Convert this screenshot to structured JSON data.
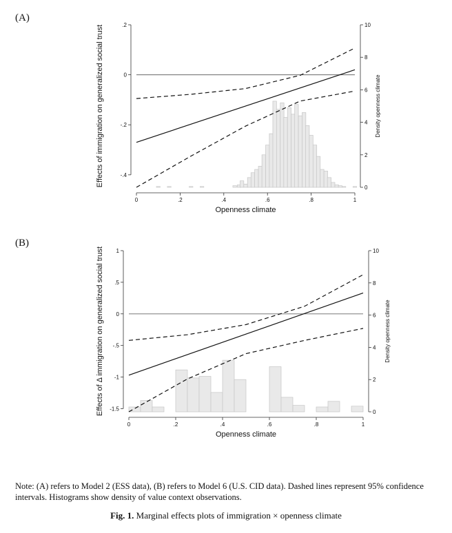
{
  "panels": {
    "a_label": "(A)",
    "b_label": "(B)"
  },
  "note": "Note: (A) refers to Model 2 (ESS data), (B) refers to Model 6 (U.S. CID data). Dashed lines represent 95% confidence intervals. Histograms show density of value context observations.",
  "caption": {
    "prefix": "Fig. 1.",
    "text": "Marginal effects plots of immigration × openness climate"
  },
  "chart_data": [
    {
      "type": "line",
      "panel": "(A)",
      "xlabel": "Openness climate",
      "ylabel": "Effects of immigration on generalized social trust",
      "y2label": "Density openness climate",
      "xlim": [
        0,
        1
      ],
      "ylim": [
        -0.45,
        0.2
      ],
      "y2lim": [
        0,
        10
      ],
      "x_ticks": [
        "0",
        ".2",
        ".4",
        ".6",
        ".8",
        "1"
      ],
      "y_ticks": [
        ".2",
        "0",
        "-.2",
        "-.4"
      ],
      "y_tick_values": [
        0.2,
        0,
        -0.2,
        -0.4
      ],
      "y2_ticks": [
        "10",
        "8",
        "6",
        "4",
        "2",
        "0"
      ],
      "y2_tick_values": [
        10,
        8,
        6,
        4,
        2,
        0
      ],
      "reference_line": 0,
      "series": [
        {
          "style": "solid",
          "x": [
            0,
            1
          ],
          "y": [
            -0.27,
            0.02
          ]
        },
        {
          "style": "dashed",
          "x": [
            0,
            0.25,
            0.5,
            0.75,
            1
          ],
          "y": [
            -0.095,
            -0.078,
            -0.055,
            -0.002,
            0.107
          ]
        },
        {
          "style": "dashed",
          "x": [
            0,
            0.25,
            0.5,
            0.75,
            1
          ],
          "y": [
            -0.45,
            -0.325,
            -0.205,
            -0.105,
            -0.065
          ]
        }
      ],
      "histogram": {
        "bin_width": 0.017,
        "bins": [
          {
            "x": 0.1,
            "density": 0.05
          },
          {
            "x": 0.15,
            "density": 0.05
          },
          {
            "x": 0.25,
            "density": 0.05
          },
          {
            "x": 0.3,
            "density": 0.05
          },
          {
            "x": 0.45,
            "density": 0.1
          },
          {
            "x": 0.47,
            "density": 0.15
          },
          {
            "x": 0.483,
            "density": 0.4
          },
          {
            "x": 0.5,
            "density": 0.2
          },
          {
            "x": 0.517,
            "density": 0.6
          },
          {
            "x": 0.533,
            "density": 0.9
          },
          {
            "x": 0.55,
            "density": 1.1
          },
          {
            "x": 0.567,
            "density": 1.3
          },
          {
            "x": 0.583,
            "density": 2.0
          },
          {
            "x": 0.6,
            "density": 2.6
          },
          {
            "x": 0.617,
            "density": 3.3
          },
          {
            "x": 0.633,
            "density": 5.3
          },
          {
            "x": 0.65,
            "density": 4.8
          },
          {
            "x": 0.667,
            "density": 5.2
          },
          {
            "x": 0.683,
            "density": 4.3
          },
          {
            "x": 0.7,
            "density": 4.9
          },
          {
            "x": 0.717,
            "density": 4.5
          },
          {
            "x": 0.733,
            "density": 5.1
          },
          {
            "x": 0.75,
            "density": 4.4
          },
          {
            "x": 0.767,
            "density": 4.6
          },
          {
            "x": 0.783,
            "density": 3.8
          },
          {
            "x": 0.8,
            "density": 3.2
          },
          {
            "x": 0.817,
            "density": 2.6
          },
          {
            "x": 0.833,
            "density": 1.9
          },
          {
            "x": 0.85,
            "density": 1.1
          },
          {
            "x": 0.867,
            "density": 1.0
          },
          {
            "x": 0.883,
            "density": 0.6
          },
          {
            "x": 0.9,
            "density": 0.3
          },
          {
            "x": 0.917,
            "density": 0.15
          },
          {
            "x": 0.933,
            "density": 0.1
          },
          {
            "x": 0.95,
            "density": 0.05
          },
          {
            "x": 1.0,
            "density": 0.05
          }
        ]
      }
    },
    {
      "type": "line",
      "panel": "(B)",
      "xlabel": "Openness climate",
      "ylabel": "Effects of Δ immigration on generalized social trust",
      "y2label": "Density openness climate",
      "xlim": [
        0,
        1
      ],
      "ylim": [
        -1.55,
        1
      ],
      "y2lim": [
        0,
        10
      ],
      "x_ticks": [
        "0",
        ".2",
        ".4",
        ".6",
        ".8",
        "1"
      ],
      "y_ticks": [
        "1",
        ".5",
        "0",
        "-.5",
        "-1",
        "-1.5"
      ],
      "y_tick_values": [
        1,
        0.5,
        0,
        -0.5,
        -1,
        -1.5
      ],
      "y2_ticks": [
        "10",
        "8",
        "6",
        "4",
        "2",
        "0"
      ],
      "y2_tick_values": [
        10,
        8,
        6,
        4,
        2,
        0
      ],
      "reference_line": 0,
      "series": [
        {
          "style": "solid",
          "x": [
            0,
            1
          ],
          "y": [
            -0.97,
            0.33
          ]
        },
        {
          "style": "dashed",
          "x": [
            0,
            0.25,
            0.5,
            0.75,
            1
          ],
          "y": [
            -0.42,
            -0.33,
            -0.17,
            0.12,
            0.62
          ]
        },
        {
          "style": "dashed",
          "x": [
            0,
            0.25,
            0.5,
            0.75,
            1
          ],
          "y": [
            -1.55,
            -1.03,
            -0.63,
            -0.42,
            -0.23
          ]
        }
      ],
      "histogram": {
        "bin_width": 0.05,
        "bins": [
          {
            "x": 0.025,
            "density": 0.3
          },
          {
            "x": 0.075,
            "density": 0.7
          },
          {
            "x": 0.125,
            "density": 0.3
          },
          {
            "x": 0.225,
            "density": 2.6
          },
          {
            "x": 0.275,
            "density": 2.1
          },
          {
            "x": 0.325,
            "density": 2.2
          },
          {
            "x": 0.375,
            "density": 1.2
          },
          {
            "x": 0.425,
            "density": 3.2
          },
          {
            "x": 0.475,
            "density": 2.0
          },
          {
            "x": 0.625,
            "density": 2.8
          },
          {
            "x": 0.675,
            "density": 0.9
          },
          {
            "x": 0.725,
            "density": 0.4
          },
          {
            "x": 0.825,
            "density": 0.3
          },
          {
            "x": 0.875,
            "density": 0.65
          },
          {
            "x": 0.975,
            "density": 0.35
          }
        ]
      }
    }
  ]
}
